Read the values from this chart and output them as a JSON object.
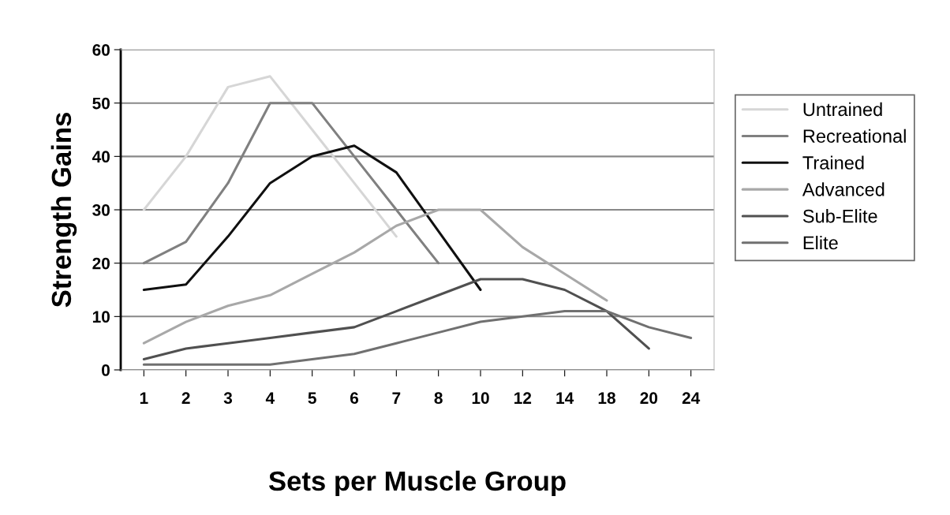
{
  "chart_data": {
    "type": "line",
    "xlabel": "Sets per Muscle Group",
    "ylabel": "Strength Gains",
    "categories": [
      "1",
      "2",
      "3",
      "4",
      "5",
      "6",
      "7",
      "8",
      "10",
      "12",
      "14",
      "18",
      "20",
      "24"
    ],
    "series": [
      {
        "name": "Untrained",
        "color": "#d6d6d6",
        "values": [
          30,
          40,
          53,
          55,
          45,
          35,
          25,
          null,
          null,
          null,
          null,
          null,
          null,
          null
        ]
      },
      {
        "name": "Recreational",
        "color": "#808080",
        "values": [
          20,
          24,
          35,
          50,
          50,
          40,
          30,
          20,
          null,
          null,
          null,
          null,
          null,
          null
        ]
      },
      {
        "name": "Trained",
        "color": "#101010",
        "values": [
          15,
          16,
          25,
          35,
          40,
          42,
          37,
          26,
          15,
          null,
          null,
          null,
          null,
          null
        ]
      },
      {
        "name": "Advanced",
        "color": "#a8a8a8",
        "values": [
          5,
          9,
          12,
          14,
          18,
          22,
          27,
          30,
          30,
          23,
          18,
          13,
          null,
          null
        ]
      },
      {
        "name": "Sub-Elite",
        "color": "#505050",
        "values": [
          2,
          4,
          5,
          6,
          7,
          8,
          11,
          14,
          17,
          17,
          15,
          11,
          4,
          null
        ]
      },
      {
        "name": "Elite",
        "color": "#707070",
        "values": [
          1,
          1,
          1,
          1,
          2,
          3,
          5,
          7,
          9,
          10,
          11,
          11,
          8,
          6
        ]
      }
    ],
    "ylim": [
      0,
      60
    ],
    "yticks": [
      0,
      10,
      20,
      30,
      40,
      50,
      60
    ],
    "grid": "y",
    "legend": "right",
    "marker": "none",
    "line_style": "solid"
  }
}
